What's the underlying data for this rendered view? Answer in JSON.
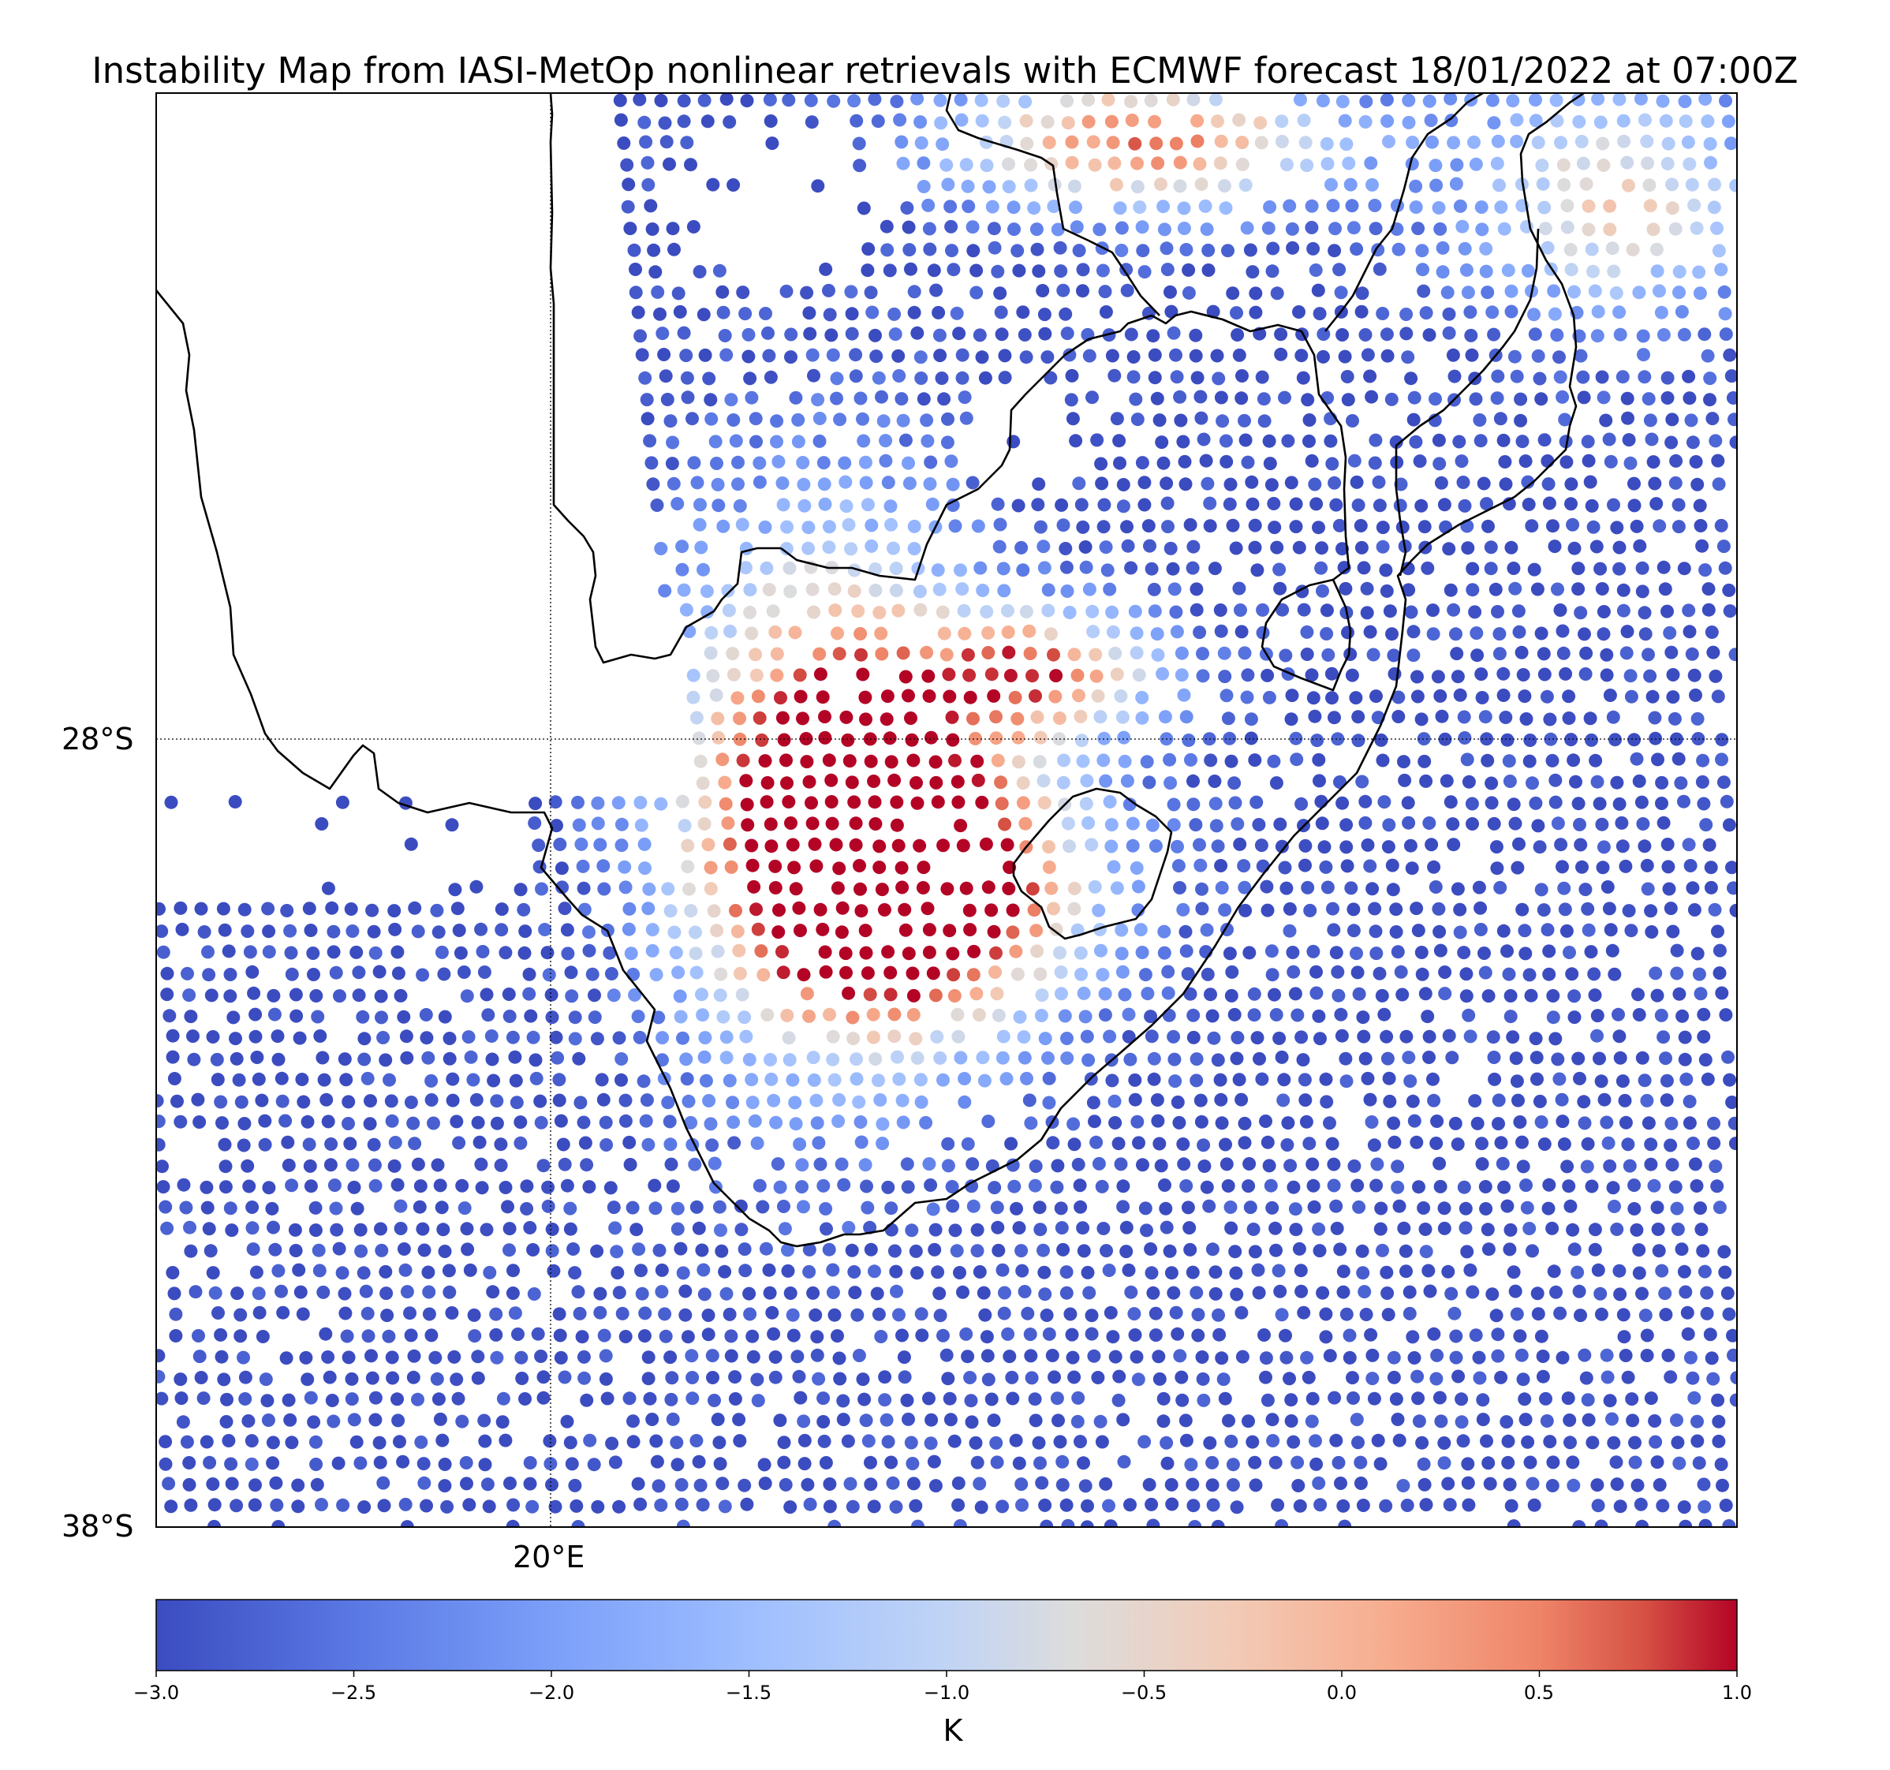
{
  "title": "Instability Map from IASI-MetOp nonlinear retrievals with ECMWF forecast 18/01/2022 at 07:00Z",
  "map": {
    "extent": {
      "lon_min": 15,
      "lon_max": 35,
      "lat_min": -38,
      "lat_max": -19.7
    },
    "gridlines": {
      "lat": [
        -28
      ],
      "lon": [
        20
      ]
    },
    "lat_labels": [
      "28°S",
      "38°S"
    ],
    "lon_labels": [
      "20°E"
    ],
    "colormap": "coolwarm",
    "colors": {
      "low": "#3b4cc0",
      "mid": "#dddddd",
      "high": "#b40426"
    }
  },
  "colorbar": {
    "label": "K",
    "vmin": -3.0,
    "vmax": 1.0,
    "ticks": [
      "−3.0",
      "−2.5",
      "−2.0",
      "−1.5",
      "−1.0",
      "−0.5",
      "0.0",
      "0.5",
      "1.0"
    ]
  }
}
